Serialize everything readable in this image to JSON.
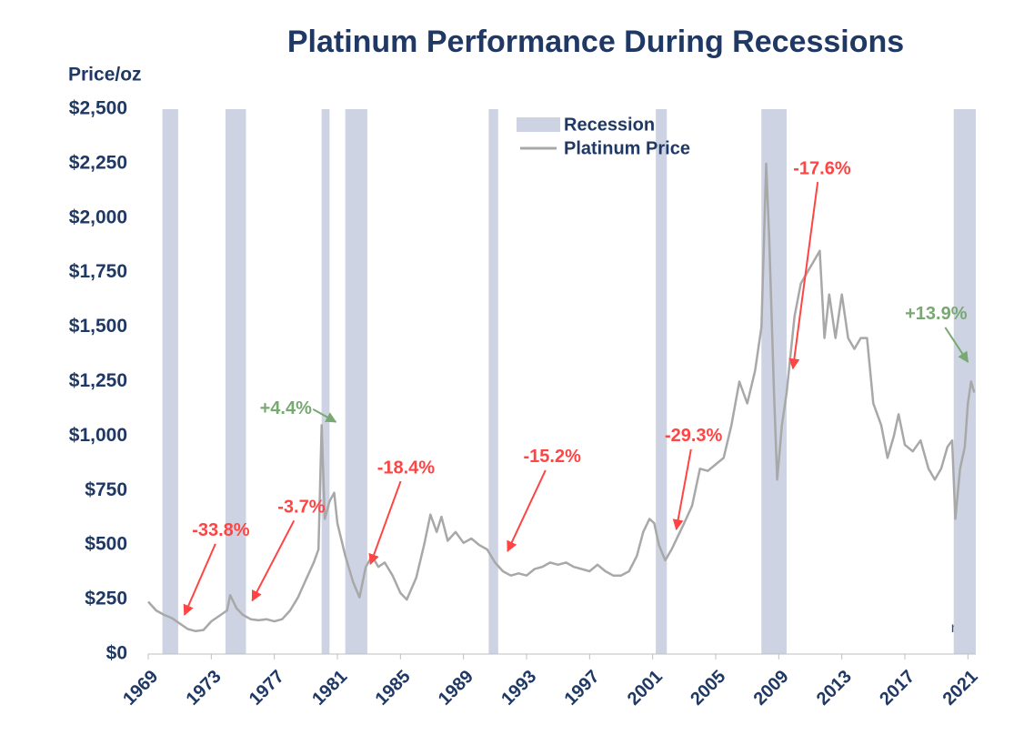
{
  "chart_data": {
    "type": "line",
    "title": "Platinum Performance During Recessions",
    "y_label": "Price/oz",
    "watermark": "net",
    "xlim": [
      1969,
      2021.5
    ],
    "xticks": [
      1969,
      1973,
      1977,
      1981,
      1985,
      1989,
      1993,
      1997,
      2001,
      2005,
      2009,
      2013,
      2017,
      2021
    ],
    "ylim": [
      0,
      2500
    ],
    "yticks": [
      {
        "value": 0,
        "label": "$0"
      },
      {
        "value": 250,
        "label": "$250"
      },
      {
        "value": 500,
        "label": "$500"
      },
      {
        "value": 750,
        "label": "$750"
      },
      {
        "value": 1000,
        "label": "$1,000"
      },
      {
        "value": 1250,
        "label": "$1,250"
      },
      {
        "value": 1500,
        "label": "$1,500"
      },
      {
        "value": 1750,
        "label": "$1,750"
      },
      {
        "value": 2000,
        "label": "$2,000"
      },
      {
        "value": 2250,
        "label": "$2,250"
      },
      {
        "value": 2500,
        "label": "$2,500"
      }
    ],
    "grid": false,
    "legend": "top",
    "recessions": {
      "name": "Recession",
      "color": "#cdd3e2",
      "spans": [
        [
          1969.9,
          1970.9
        ],
        [
          1973.9,
          1975.2
        ],
        [
          1980.0,
          1980.5
        ],
        [
          1981.5,
          1982.9
        ],
        [
          1990.6,
          1991.2
        ],
        [
          2001.2,
          2001.9
        ],
        [
          2007.9,
          2009.5
        ],
        [
          2020.1,
          2021.5
        ]
      ]
    },
    "x": [
      1969,
      1969.5,
      1970,
      1970.5,
      1971,
      1971.5,
      1972,
      1972.5,
      1973,
      1973.5,
      1974,
      1974.2,
      1974.6,
      1975,
      1975.5,
      1976,
      1976.5,
      1977,
      1977.5,
      1978,
      1978.5,
      1979,
      1979.5,
      1979.8,
      1980.0,
      1980.2,
      1980.5,
      1980.8,
      1981,
      1981.5,
      1982,
      1982.4,
      1982.8,
      1983.2,
      1983.6,
      1984,
      1984.5,
      1985,
      1985.4,
      1986,
      1986.5,
      1986.9,
      1987.3,
      1987.6,
      1988,
      1988.5,
      1989,
      1989.5,
      1990,
      1990.5,
      1991,
      1991.5,
      1992,
      1992.5,
      1993,
      1993.5,
      1994,
      1994.5,
      1995,
      1995.5,
      1996,
      1996.5,
      1997,
      1997.5,
      1998,
      1998.5,
      1999,
      1999.5,
      2000,
      2000.4,
      2000.8,
      2001.1,
      2001.4,
      2001.8,
      2002.2,
      2002.6,
      2003,
      2003.5,
      2004,
      2004.5,
      2005,
      2005.5,
      2006,
      2006.5,
      2007,
      2007.5,
      2007.9,
      2008.2,
      2008.4,
      2008.7,
      2008.9,
      2009.2,
      2009.5,
      2010,
      2010.4,
      2010.8,
      2011.2,
      2011.6,
      2011.9,
      2012.2,
      2012.6,
      2013,
      2013.4,
      2013.8,
      2014.2,
      2014.6,
      2015,
      2015.5,
      2015.9,
      2016.3,
      2016.6,
      2017,
      2017.5,
      2018,
      2018.5,
      2018.9,
      2019.3,
      2019.7,
      2020.0,
      2020.2,
      2020.5,
      2020.8,
      2021.0,
      2021.2,
      2021.4
    ],
    "series": [
      {
        "name": "Platinum Price",
        "color": "#a8a8a8",
        "values": [
          240,
          200,
          180,
          165,
          140,
          115,
          105,
          110,
          150,
          175,
          200,
          270,
          210,
          180,
          160,
          155,
          160,
          150,
          160,
          200,
          260,
          340,
          420,
          480,
          1050,
          620,
          700,
          740,
          600,
          450,
          330,
          260,
          400,
          450,
          400,
          420,
          360,
          280,
          250,
          350,
          500,
          640,
          560,
          630,
          520,
          560,
          510,
          530,
          500,
          480,
          420,
          380,
          360,
          370,
          360,
          390,
          400,
          420,
          410,
          420,
          400,
          390,
          380,
          410,
          380,
          360,
          360,
          380,
          450,
          560,
          620,
          600,
          500,
          430,
          480,
          540,
          600,
          680,
          850,
          840,
          870,
          900,
          1050,
          1250,
          1150,
          1300,
          1500,
          2250,
          1900,
          1200,
          800,
          1050,
          1200,
          1550,
          1700,
          1750,
          1800,
          1850,
          1450,
          1650,
          1450,
          1650,
          1450,
          1400,
          1450,
          1450,
          1150,
          1050,
          900,
          1000,
          1100,
          960,
          930,
          980,
          850,
          800,
          850,
          950,
          980,
          620,
          850,
          950,
          1150,
          1250,
          1200
        ]
      }
    ],
    "annotations": [
      {
        "text": "-33.8%",
        "color": "#ff4444",
        "x": 1971.3,
        "y": 180
      },
      {
        "text": "-3.7%",
        "color": "#ff4444",
        "x": 1975.6,
        "y": 245
      },
      {
        "text": "+4.4%",
        "color": "#79a873",
        "x": 1980.9,
        "y": 1065
      },
      {
        "text": "-18.4%",
        "color": "#ff4444",
        "x": 1983.1,
        "y": 413
      },
      {
        "text": "-15.2%",
        "color": "#ff4444",
        "x": 1991.8,
        "y": 472
      },
      {
        "text": "-29.3%",
        "color": "#ff4444",
        "x": 2002.5,
        "y": 572
      },
      {
        "text": "-17.6%",
        "color": "#ff4444",
        "x": 2009.9,
        "y": 1310
      },
      {
        "text": "+13.9%",
        "color": "#79a873",
        "x": 2021.0,
        "y": 1340
      }
    ]
  }
}
